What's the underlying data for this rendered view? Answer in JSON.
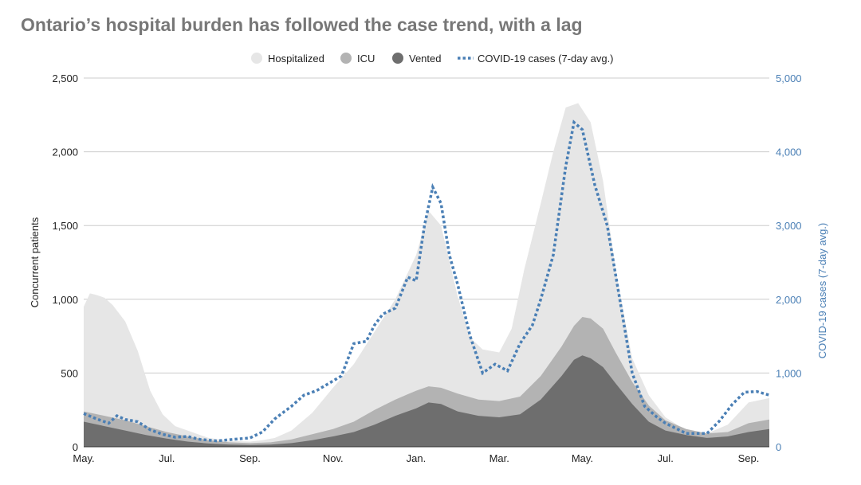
{
  "chart_data": {
    "type": "area",
    "title": "Ontario’s hospital burden has followed the case trend, with a lag",
    "ylabel": "Concurrent patients",
    "y2label": "COVID-19 cases (7-day avg.)",
    "ylim": [
      0,
      2500
    ],
    "y2lim": [
      0,
      5000
    ],
    "yticks": [
      0,
      500,
      1000,
      1500,
      2000,
      2500
    ],
    "yticklabels": [
      "0",
      "500",
      "1,000",
      "1,500",
      "2,000",
      "2,500"
    ],
    "y2ticks": [
      0,
      1000,
      2000,
      3000,
      4000,
      5000
    ],
    "y2ticklabels": [
      "0",
      "1,000",
      "2,000",
      "3,000",
      "4,000",
      "5,000"
    ],
    "xlim": [
      0,
      16.5
    ],
    "xticks": [
      0,
      2,
      4,
      6,
      8,
      10,
      12,
      14,
      16
    ],
    "xticklabels": [
      "May.",
      "Jul.",
      "Sep.",
      "Nov.",
      "Jan.",
      "Mar.",
      "May.",
      "Jul.",
      "Sep."
    ],
    "grid": true,
    "legend_position": "top-center",
    "colors": {
      "hospitalized": "#e6e6e6",
      "icu": "#b3b3b3",
      "vented": "#6e6e6e",
      "cases": "#4a7fb5",
      "text": "#333333",
      "title": "#777777",
      "axis2": "#4a7fb5"
    },
    "series": [
      {
        "name": "Hospitalized",
        "x": [
          0,
          0.15,
          0.3,
          0.5,
          0.7,
          1.0,
          1.3,
          1.6,
          1.9,
          2.2,
          2.5,
          3.0,
          3.5,
          4.0,
          4.3,
          4.6,
          5.0,
          5.5,
          6.0,
          6.5,
          7.0,
          7.5,
          8.0,
          8.3,
          8.6,
          9.0,
          9.3,
          9.6,
          10.0,
          10.3,
          10.6,
          11.0,
          11.3,
          11.6,
          11.9,
          12.2,
          12.5,
          12.8,
          13.2,
          13.6,
          14.0,
          14.5,
          15.0,
          15.5,
          16.0,
          16.5
        ],
        "values": [
          950,
          1040,
          1030,
          1010,
          960,
          850,
          650,
          380,
          220,
          140,
          110,
          60,
          40,
          35,
          45,
          60,
          110,
          230,
          400,
          560,
          780,
          1000,
          1300,
          1600,
          1500,
          1020,
          740,
          660,
          640,
          800,
          1200,
          1650,
          2000,
          2300,
          2330,
          2200,
          1800,
          1200,
          600,
          350,
          200,
          110,
          90,
          150,
          300,
          330
        ]
      },
      {
        "name": "ICU",
        "x": [
          0,
          0.5,
          1.0,
          1.5,
          2.0,
          2.5,
          3.0,
          3.5,
          4.0,
          4.5,
          5.0,
          5.5,
          6.0,
          6.5,
          7.0,
          7.5,
          8.0,
          8.3,
          8.6,
          9.0,
          9.5,
          10.0,
          10.5,
          11.0,
          11.5,
          11.8,
          12.0,
          12.2,
          12.5,
          12.8,
          13.2,
          13.6,
          14.0,
          14.5,
          15.0,
          15.5,
          16.0,
          16.5
        ],
        "values": [
          240,
          210,
          180,
          140,
          100,
          70,
          45,
          30,
          25,
          30,
          50,
          85,
          120,
          170,
          250,
          320,
          380,
          410,
          400,
          360,
          320,
          310,
          340,
          480,
          680,
          820,
          880,
          870,
          800,
          640,
          440,
          280,
          180,
          120,
          90,
          100,
          160,
          185
        ]
      },
      {
        "name": "Vented",
        "x": [
          0,
          0.5,
          1.0,
          1.5,
          2.0,
          2.5,
          3.0,
          3.5,
          4.0,
          4.5,
          5.0,
          5.5,
          6.0,
          6.5,
          7.0,
          7.5,
          8.0,
          8.3,
          8.6,
          9.0,
          9.5,
          10.0,
          10.5,
          11.0,
          11.5,
          11.8,
          12.0,
          12.2,
          12.5,
          12.8,
          13.2,
          13.6,
          14.0,
          14.5,
          15.0,
          15.5,
          16.0,
          16.5
        ],
        "values": [
          170,
          140,
          110,
          80,
          55,
          35,
          22,
          15,
          12,
          15,
          25,
          45,
          70,
          100,
          150,
          210,
          260,
          300,
          290,
          240,
          210,
          200,
          220,
          320,
          480,
          590,
          620,
          600,
          540,
          430,
          290,
          170,
          110,
          80,
          60,
          70,
          100,
          120
        ]
      },
      {
        "name": "COVID-19 cases (7-day avg.)",
        "axis": "right",
        "x": [
          0,
          0.3,
          0.6,
          0.8,
          1.0,
          1.3,
          1.6,
          1.9,
          2.2,
          2.5,
          2.8,
          3.2,
          3.6,
          4.0,
          4.3,
          4.6,
          5.0,
          5.3,
          5.6,
          5.9,
          6.2,
          6.5,
          6.8,
          7.0,
          7.2,
          7.5,
          7.8,
          8.0,
          8.2,
          8.4,
          8.6,
          8.8,
          9.0,
          9.3,
          9.6,
          9.9,
          10.2,
          10.5,
          10.8,
          11.0,
          11.3,
          11.6,
          11.8,
          12.0,
          12.3,
          12.6,
          12.9,
          13.2,
          13.5,
          13.8,
          14.0,
          14.5,
          15.0,
          15.3,
          15.6,
          15.9,
          16.2,
          16.5
        ],
        "values": [
          450,
          380,
          320,
          420,
          370,
          340,
          230,
          170,
          130,
          140,
          100,
          80,
          100,
          120,
          200,
          380,
          550,
          700,
          760,
          860,
          960,
          1400,
          1430,
          1650,
          1800,
          1880,
          2300,
          2250,
          3000,
          3520,
          3300,
          2600,
          2200,
          1500,
          1000,
          1120,
          1030,
          1400,
          1650,
          2000,
          2600,
          3800,
          4400,
          4300,
          3550,
          3000,
          2000,
          1000,
          550,
          400,
          320,
          180,
          180,
          350,
          570,
          740,
          750,
          700
        ]
      }
    ]
  }
}
